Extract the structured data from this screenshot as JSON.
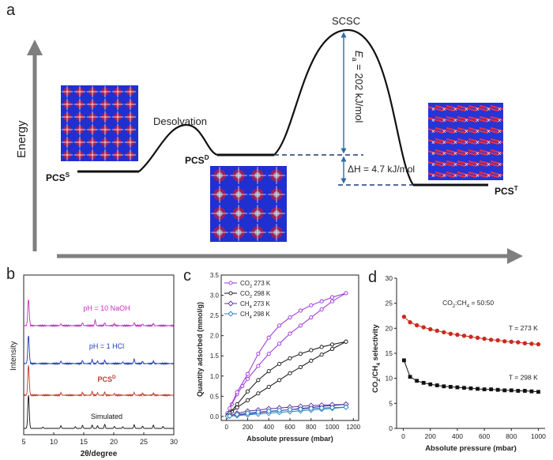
{
  "panel_a": {
    "label": "a",
    "y_axis_label": "Energy",
    "states": {
      "pcs_s": {
        "base": "PCS",
        "sup": "S"
      },
      "pcs_d": {
        "base": "PCS",
        "sup": "D"
      },
      "pcs_t": {
        "base": "PCS",
        "sup": "T"
      }
    },
    "desolvation_label": "Desolvation",
    "scsc_label": "SCSC",
    "ea_label": {
      "symbol": "E",
      "sub": "a",
      "rest": " = 202 kJ/mol"
    },
    "dh_label": "ΔH = 4.7 kJ/mol",
    "colors": {
      "axis": "#7f7f7f",
      "curve": "#111111",
      "dashed": "#1f3b73",
      "arrow": "#2e6da4"
    }
  },
  "chart_data": [
    {
      "panel": "b",
      "type": "line",
      "xlabel": "2θ/degree",
      "ylabel": "Intensity",
      "xlim": [
        5,
        30
      ],
      "xticks": [
        5,
        10,
        15,
        20,
        25,
        30
      ],
      "grid": false,
      "series": [
        {
          "name": "Simulated",
          "color": "#111111",
          "peaks": [
            [
              5.8,
              100
            ],
            [
              8.2,
              4
            ],
            [
              11.2,
              8
            ],
            [
              13.6,
              5
            ],
            [
              14.8,
              9
            ],
            [
              16.4,
              10
            ],
            [
              17.3,
              8
            ],
            [
              18.5,
              12
            ],
            [
              20.1,
              6
            ],
            [
              21.5,
              5
            ],
            [
              23.4,
              11
            ],
            [
              24.8,
              7
            ],
            [
              26.6,
              10
            ],
            [
              28.2,
              6
            ]
          ]
        },
        {
          "name": "PCS",
          "sup": "D",
          "color": "#c0392b",
          "peaks": [
            [
              5.8,
              90
            ],
            [
              11.2,
              7
            ],
            [
              14.8,
              8
            ],
            [
              16.4,
              11
            ],
            [
              17.3,
              7
            ],
            [
              18.5,
              9
            ],
            [
              20.1,
              5
            ],
            [
              23.4,
              8
            ],
            [
              24.8,
              5
            ],
            [
              26.6,
              6
            ]
          ]
        },
        {
          "name": "pH = 1   HCl",
          "color": "#1f3bb3",
          "peaks": [
            [
              5.8,
              85
            ],
            [
              11.2,
              7
            ],
            [
              14.8,
              9
            ],
            [
              16.4,
              12
            ],
            [
              17.3,
              8
            ],
            [
              18.5,
              10
            ],
            [
              21.5,
              5
            ],
            [
              23.4,
              14
            ],
            [
              24.8,
              6
            ],
            [
              26.6,
              7
            ]
          ]
        },
        {
          "name": "pH = 10   NaOH",
          "color": "#c030c0",
          "peaks": [
            [
              5.8,
              80
            ],
            [
              11.2,
              6
            ],
            [
              14.8,
              9
            ],
            [
              16.9,
              17
            ],
            [
              18.5,
              8
            ],
            [
              20.1,
              5
            ],
            [
              23.4,
              9
            ],
            [
              24.8,
              5
            ],
            [
              26.6,
              6
            ]
          ]
        }
      ]
    },
    {
      "panel": "c",
      "type": "line",
      "xlabel": "Absolute pressure (mbar)",
      "ylabel": "Quantity adsorbed (mmol/g)",
      "xlim": [
        -50,
        1250
      ],
      "ylim": [
        -0.1,
        3.5
      ],
      "xticks": [
        0,
        200,
        400,
        600,
        800,
        1000,
        1200
      ],
      "yticks": [
        0.0,
        0.5,
        1.0,
        1.5,
        2.0,
        2.5,
        3.0,
        3.5
      ],
      "legend_position": "top-left",
      "series": [
        {
          "name": "CO",
          "sub": "2",
          "suffix": " 273 K",
          "color": "#9b30d9",
          "marker": "circle-open",
          "adsorption": [
            [
              10,
              0.08
            ],
            [
              50,
              0.3
            ],
            [
              100,
              0.55
            ],
            [
              150,
              0.75
            ],
            [
              200,
              0.93
            ],
            [
              300,
              1.25
            ],
            [
              400,
              1.55
            ],
            [
              500,
              1.8
            ],
            [
              600,
              2.05
            ],
            [
              700,
              2.25
            ],
            [
              800,
              2.45
            ],
            [
              900,
              2.65
            ],
            [
              1000,
              2.85
            ],
            [
              1130,
              3.05
            ]
          ],
          "desorption": [
            [
              1130,
              3.05
            ],
            [
              1000,
              2.95
            ],
            [
              900,
              2.85
            ],
            [
              800,
              2.75
            ],
            [
              700,
              2.62
            ],
            [
              600,
              2.45
            ],
            [
              500,
              2.25
            ],
            [
              400,
              1.95
            ],
            [
              300,
              1.55
            ],
            [
              200,
              1.05
            ],
            [
              100,
              0.6
            ],
            [
              30,
              0.2
            ]
          ]
        },
        {
          "name": "CO",
          "sub": "2",
          "suffix": " 298 K",
          "color": "#111111",
          "marker": "circle-open",
          "adsorption": [
            [
              10,
              0.03
            ],
            [
              50,
              0.12
            ],
            [
              100,
              0.22
            ],
            [
              200,
              0.4
            ],
            [
              300,
              0.57
            ],
            [
              400,
              0.73
            ],
            [
              500,
              0.9
            ],
            [
              600,
              1.07
            ],
            [
              700,
              1.22
            ],
            [
              800,
              1.38
            ],
            [
              900,
              1.53
            ],
            [
              1000,
              1.67
            ],
            [
              1130,
              1.85
            ]
          ],
          "desorption": [
            [
              1130,
              1.85
            ],
            [
              1000,
              1.78
            ],
            [
              900,
              1.72
            ],
            [
              800,
              1.64
            ],
            [
              700,
              1.55
            ],
            [
              600,
              1.44
            ],
            [
              500,
              1.3
            ],
            [
              400,
              1.12
            ],
            [
              300,
              0.9
            ],
            [
              200,
              0.62
            ],
            [
              100,
              0.3
            ],
            [
              30,
              0.08
            ]
          ]
        },
        {
          "name": "CH",
          "sub": "4",
          "suffix": " 273 K",
          "color": "#5a2ca0",
          "marker": "diamond-open",
          "adsorption": [
            [
              10,
              0.01
            ],
            [
              100,
              0.04
            ],
            [
              200,
              0.06
            ],
            [
              300,
              0.09
            ],
            [
              400,
              0.12
            ],
            [
              500,
              0.14
            ],
            [
              600,
              0.17
            ],
            [
              700,
              0.2
            ],
            [
              800,
              0.22
            ],
            [
              900,
              0.25
            ],
            [
              1000,
              0.27
            ],
            [
              1130,
              0.3
            ]
          ],
          "desorption": [
            [
              1130,
              0.3
            ],
            [
              1000,
              0.29
            ],
            [
              900,
              0.28
            ],
            [
              800,
              0.27
            ],
            [
              700,
              0.25
            ],
            [
              600,
              0.23
            ],
            [
              500,
              0.21
            ],
            [
              400,
              0.19
            ],
            [
              300,
              0.16
            ],
            [
              200,
              0.13
            ],
            [
              100,
              0.08
            ],
            [
              30,
              0.02
            ]
          ]
        },
        {
          "name": "CH",
          "sub": "4",
          "suffix": " 298 K",
          "color": "#2a7fbf",
          "marker": "diamond-open",
          "adsorption": [
            [
              10,
              0.005
            ],
            [
              100,
              0.02
            ],
            [
              200,
              0.04
            ],
            [
              300,
              0.06
            ],
            [
              400,
              0.08
            ],
            [
              500,
              0.1
            ],
            [
              600,
              0.12
            ],
            [
              700,
              0.14
            ],
            [
              800,
              0.16
            ],
            [
              900,
              0.18
            ],
            [
              1000,
              0.2
            ],
            [
              1130,
              0.23
            ]
          ],
          "desorption": [
            [
              1130,
              0.23
            ],
            [
              1000,
              0.22
            ],
            [
              900,
              0.21
            ],
            [
              800,
              0.2
            ],
            [
              700,
              0.18
            ],
            [
              600,
              0.17
            ],
            [
              500,
              0.15
            ],
            [
              400,
              0.13
            ],
            [
              300,
              0.11
            ],
            [
              200,
              0.08
            ],
            [
              100,
              0.05
            ],
            [
              30,
              0.01
            ]
          ]
        }
      ]
    },
    {
      "panel": "d",
      "type": "scatter",
      "xlabel": "Absolute pressure (mbar)",
      "ylabel": {
        "a": "CO",
        "a_sub": "2",
        "b": "/CH",
        "b_sub": "4",
        "c": " selectivity"
      },
      "xlim": [
        -50,
        1050
      ],
      "ylim": [
        0,
        30
      ],
      "xticks": [
        0,
        200,
        400,
        600,
        800,
        1000
      ],
      "yticks": [
        0,
        5,
        10,
        15,
        20,
        25,
        30
      ],
      "annotation": {
        "a": "CO",
        "a_sub": "2",
        "b": ":CH",
        "b_sub": "4",
        "c": " = 50:50"
      },
      "series": [
        {
          "name": "T = 273 K",
          "color": "#cc2a1e",
          "marker": "circle",
          "x": [
            5,
            50,
            100,
            150,
            200,
            250,
            300,
            350,
            400,
            450,
            500,
            550,
            600,
            650,
            700,
            750,
            800,
            850,
            900,
            950,
            1000
          ],
          "y": [
            22.3,
            21.2,
            20.6,
            20.2,
            19.8,
            19.5,
            19.2,
            18.9,
            18.7,
            18.5,
            18.3,
            18.1,
            17.9,
            17.7,
            17.6,
            17.4,
            17.3,
            17.2,
            17.0,
            16.9,
            16.8
          ]
        },
        {
          "name": "T = 298 K",
          "color": "#111111",
          "marker": "square",
          "x": [
            5,
            50,
            100,
            150,
            200,
            250,
            300,
            350,
            400,
            450,
            500,
            550,
            600,
            650,
            700,
            750,
            800,
            850,
            900,
            950,
            1000
          ],
          "y": [
            13.6,
            10.3,
            9.5,
            9.1,
            8.8,
            8.6,
            8.4,
            8.3,
            8.2,
            8.1,
            8.0,
            7.9,
            7.8,
            7.8,
            7.7,
            7.6,
            7.6,
            7.5,
            7.5,
            7.4,
            7.3
          ]
        }
      ]
    }
  ],
  "panel_labels": {
    "b": "b",
    "c": "c",
    "d": "d"
  }
}
